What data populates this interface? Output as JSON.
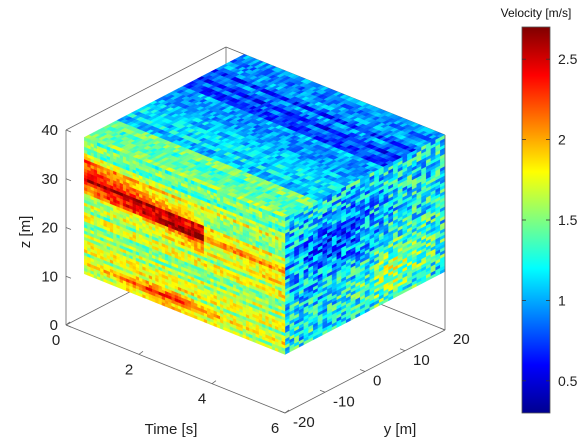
{
  "chart_data": {
    "type": "heatmap",
    "title": "",
    "subtitle": "",
    "xlabel": "Time [s]",
    "ylabel": "y [m]",
    "zlabel": "z [m]",
    "x_ticks": [
      "0",
      "2",
      "4",
      "6"
    ],
    "y_ticks": [
      "-20",
      "-10",
      "0",
      "10",
      "20"
    ],
    "z_ticks": [
      "0",
      "10",
      "20",
      "30",
      "40"
    ],
    "xlim": [
      0,
      6
    ],
    "ylim": [
      -20,
      20
    ],
    "zlim": [
      0,
      40
    ],
    "data_extent": {
      "time": [
        0.5,
        6
      ],
      "y": [
        -20,
        20
      ],
      "z": [
        12,
        40
      ]
    },
    "grid": false,
    "colorbar": {
      "title": "Velocity [m/s]",
      "ticks": [
        "0.5",
        "1",
        "1.5",
        "2",
        "2.5"
      ],
      "range": [
        0.3,
        2.7
      ],
      "placement": "right",
      "colormap": "jet"
    },
    "faces": [
      {
        "name": "front face (constant y = -20)",
        "features": [
          {
            "description": "high-velocity band",
            "time": [
              0.5,
              3.5
            ],
            "z": [
              28,
              33
            ],
            "velocity": 2.5
          },
          {
            "description": "moderate band",
            "time": [
              1.5,
              4.0
            ],
            "z": [
              12,
              16
            ],
            "velocity": 2.1
          }
        ],
        "background_velocity": 1.6
      },
      {
        "name": "right face (constant time = 6)",
        "background_velocity": 1.2,
        "note_velocity_low": 0.8
      },
      {
        "name": "top face (constant z = 40)",
        "background_velocity": 1.2,
        "note_velocity_low": 0.7
      }
    ]
  }
}
